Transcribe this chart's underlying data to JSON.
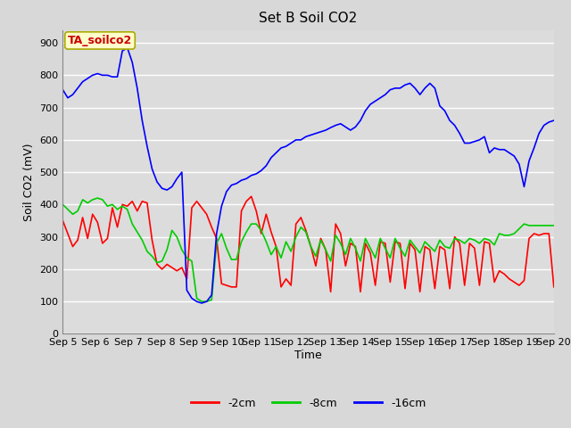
{
  "title": "Set B Soil CO2",
  "ylabel": "Soil CO2 (mV)",
  "xlabel": "Time",
  "annotation": "TA_soilco2",
  "ylim": [
    0,
    940
  ],
  "yticks": [
    0,
    100,
    200,
    300,
    400,
    500,
    600,
    700,
    800,
    900
  ],
  "xtick_labels": [
    "Sep 5",
    "Sep 6",
    "Sep 7",
    "Sep 8",
    "Sep 9",
    "Sep 10",
    "Sep 11",
    "Sep 12",
    "Sep 13",
    "Sep 14",
    "Sep 15",
    "Sep 16",
    "Sep 17",
    "Sep 18",
    "Sep 19",
    "Sep 20"
  ],
  "legend_labels": [
    "-2cm",
    "-8cm",
    "-16cm"
  ],
  "legend_colors": [
    "#ff0000",
    "#00cc00",
    "#0000ff"
  ],
  "fig_bg": "#d8d8d8",
  "plot_bg": "#dcdcdc",
  "annotation_bg": "#ffffcc",
  "annotation_border": "#aaaa00",
  "annotation_text_color": "#cc0000",
  "grid_color": "#ffffff",
  "line_width": 1.2,
  "series_red": [
    350,
    310,
    270,
    290,
    360,
    295,
    370,
    345,
    280,
    295,
    390,
    330,
    400,
    395,
    410,
    380,
    410,
    405,
    290,
    215,
    200,
    215,
    205,
    195,
    205,
    170,
    390,
    410,
    390,
    370,
    330,
    295,
    155,
    150,
    145,
    145,
    380,
    410,
    425,
    380,
    310,
    370,
    315,
    270,
    145,
    170,
    150,
    340,
    360,
    320,
    270,
    210,
    295,
    260,
    130,
    340,
    310,
    210,
    280,
    270,
    130,
    280,
    250,
    150,
    285,
    280,
    160,
    285,
    280,
    140,
    280,
    260,
    130,
    270,
    260,
    140,
    270,
    260,
    140,
    300,
    280,
    150,
    280,
    265,
    150,
    285,
    280,
    160,
    195,
    185,
    170,
    160,
    150,
    165,
    295,
    310,
    305,
    310,
    310,
    145
  ],
  "series_green": [
    400,
    385,
    370,
    380,
    415,
    405,
    415,
    420,
    415,
    395,
    400,
    385,
    395,
    385,
    340,
    315,
    290,
    255,
    240,
    220,
    225,
    260,
    320,
    300,
    260,
    235,
    225,
    110,
    100,
    100,
    105,
    280,
    310,
    265,
    230,
    230,
    285,
    315,
    340,
    340,
    320,
    285,
    245,
    270,
    235,
    285,
    255,
    300,
    330,
    315,
    270,
    240,
    290,
    260,
    225,
    305,
    280,
    245,
    295,
    265,
    225,
    295,
    265,
    235,
    295,
    265,
    235,
    295,
    265,
    240,
    290,
    270,
    250,
    285,
    270,
    255,
    290,
    270,
    265,
    295,
    290,
    280,
    295,
    290,
    280,
    295,
    290,
    275,
    310,
    305,
    305,
    310,
    325,
    340,
    335,
    335,
    335,
    335,
    335,
    335
  ],
  "series_blue": [
    755,
    730,
    740,
    760,
    780,
    790,
    800,
    805,
    800,
    800,
    795,
    795,
    875,
    885,
    840,
    760,
    660,
    580,
    510,
    470,
    450,
    445,
    455,
    480,
    500,
    135,
    110,
    100,
    95,
    100,
    120,
    310,
    395,
    440,
    460,
    465,
    475,
    480,
    490,
    495,
    505,
    520,
    545,
    560,
    575,
    580,
    590,
    600,
    600,
    610,
    615,
    620,
    625,
    630,
    638,
    645,
    650,
    640,
    630,
    640,
    660,
    690,
    710,
    720,
    730,
    740,
    755,
    760,
    760,
    770,
    775,
    760,
    740,
    760,
    775,
    760,
    705,
    690,
    660,
    645,
    620,
    590,
    590,
    595,
    600,
    610,
    560,
    575,
    570,
    570,
    560,
    550,
    525,
    455,
    535,
    575,
    620,
    645,
    655,
    660
  ],
  "n_points": 100
}
